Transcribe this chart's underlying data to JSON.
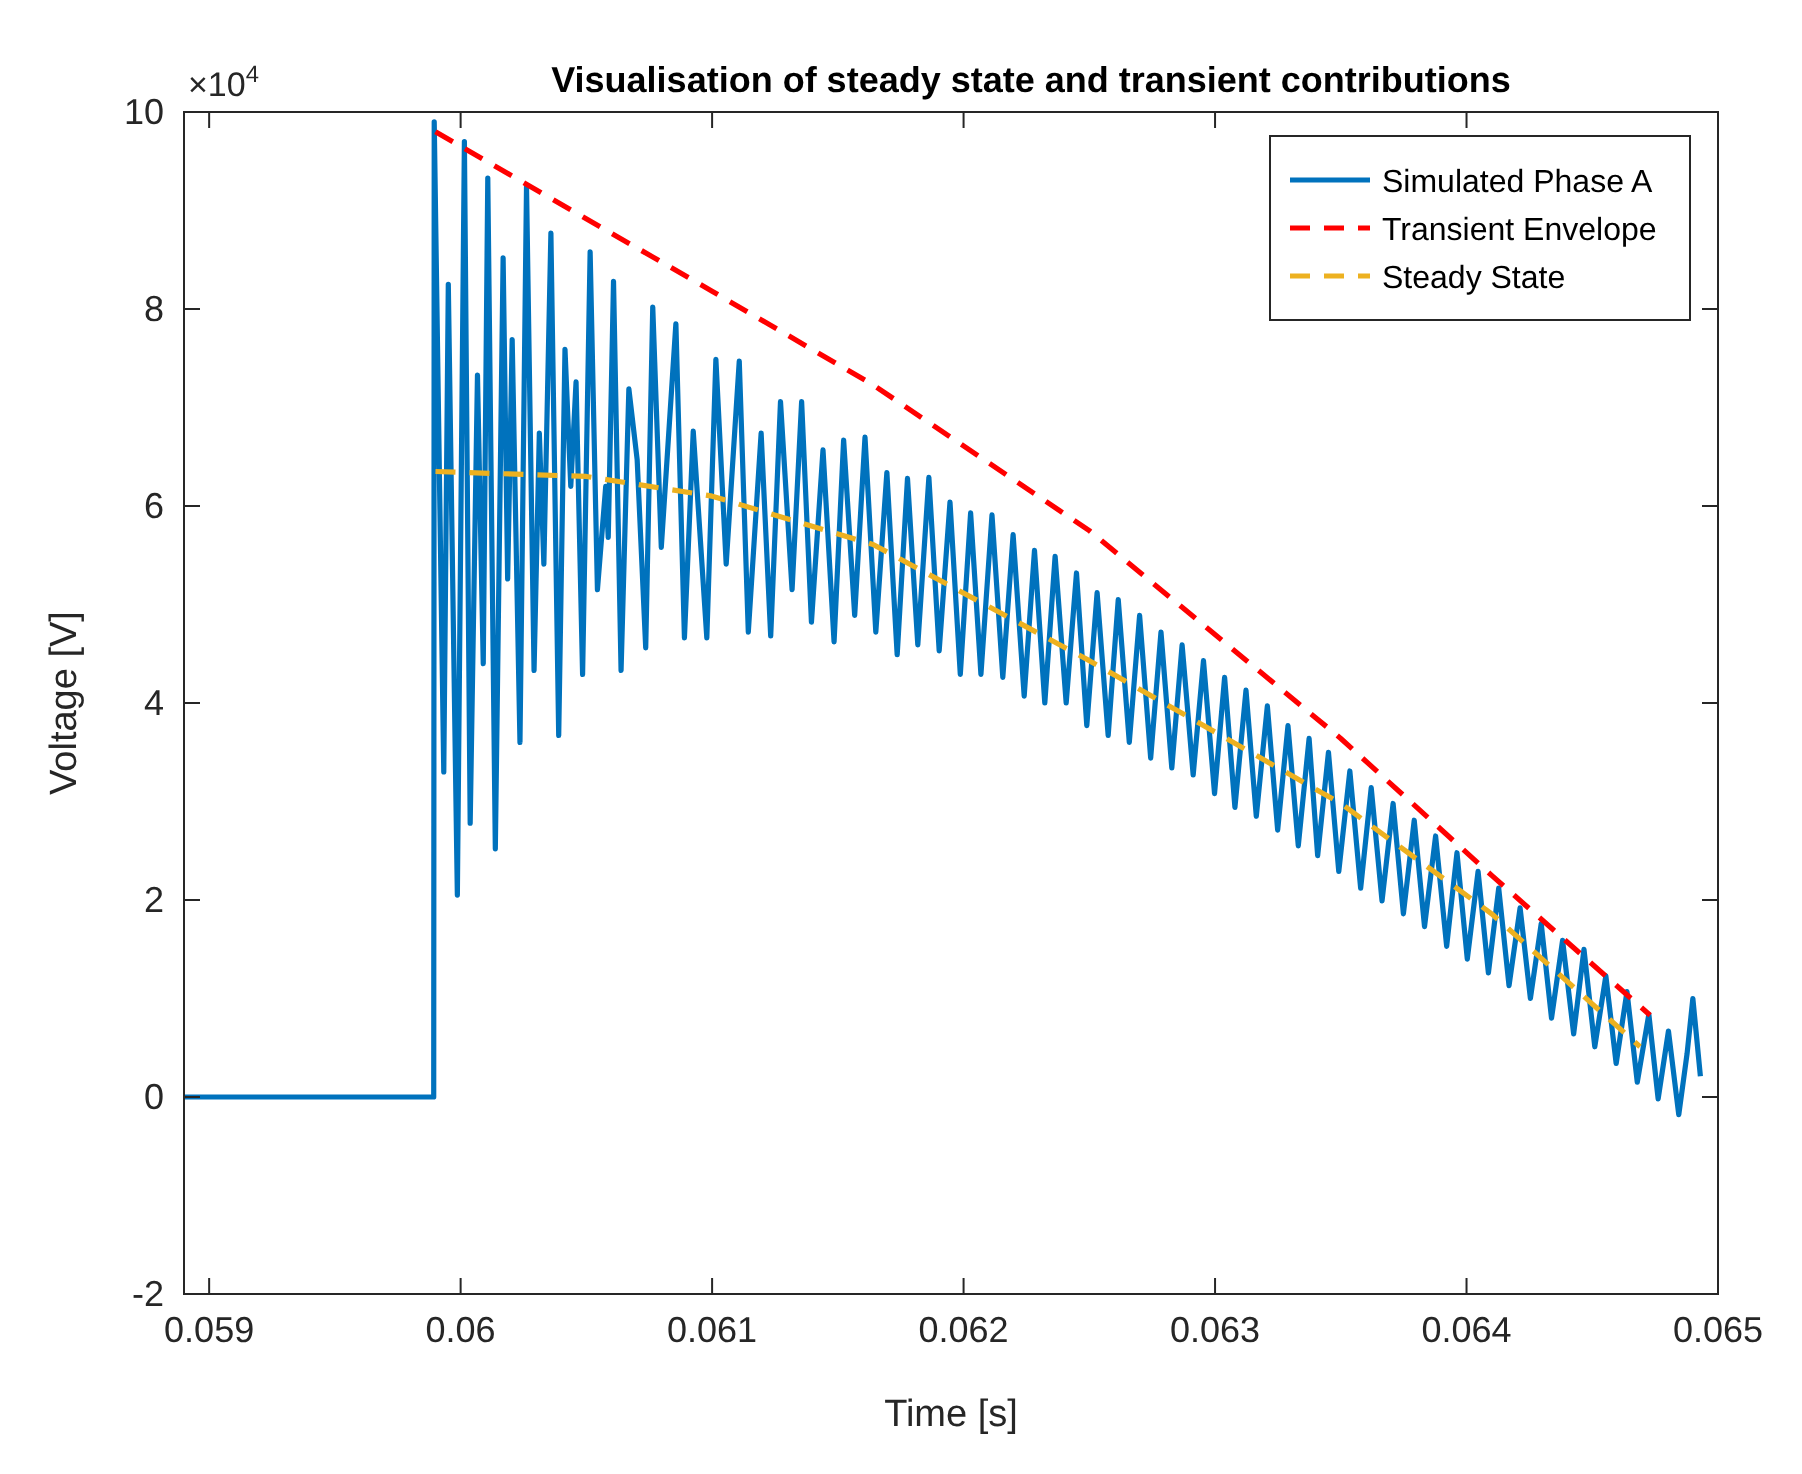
{
  "chart_data": {
    "type": "line",
    "title": "Visualisation of steady state and transient contributions",
    "xlabel": "Time [s]",
    "ylabel": "Voltage [V]",
    "annotations": [
      "×10$^{4}$"
    ],
    "xlim": [
      0.0589,
      0.065
    ],
    "xticks": [
      0.059,
      0.06,
      0.061,
      0.062,
      0.063,
      0.064,
      0.065
    ],
    "ylim": [
      -2,
      10
    ],
    "yticks": [
      -2,
      0,
      2,
      4,
      6,
      8,
      10
    ],
    "grid": false,
    "legend": "top right",
    "line_style": "solid",
    "marker": "none",
    "series": [
      {
        "name": "Simulated Phase A",
        "color": "#0072bd",
        "x": [
          0.0589,
          0.059893,
          0.059895,
          0.059933,
          0.059951,
          0.059987,
          0.060015,
          0.060038,
          0.060067,
          0.06009,
          0.060108,
          0.060138,
          0.060169,
          0.060187,
          0.060205,
          0.060236,
          0.060262,
          0.060292,
          0.060313,
          0.060331,
          0.060359,
          0.06039,
          0.060415,
          0.060438,
          0.060459,
          0.060485,
          0.060515,
          0.060544,
          0.060577,
          0.060587,
          0.060608,
          0.060638,
          0.060669,
          0.060702,
          0.060736,
          0.060764,
          0.060798,
          0.060856,
          0.06089,
          0.060925,
          0.060979,
          0.061015,
          0.061056,
          0.061108,
          0.061144,
          0.061195,
          0.061233,
          0.061272,
          0.061318,
          0.061356,
          0.061395,
          0.061441,
          0.061485,
          0.061523,
          0.061567,
          0.061608,
          0.061651,
          0.061695,
          0.061736,
          0.061777,
          0.061818,
          0.061862,
          0.061903,
          0.061946,
          0.061987,
          0.062028,
          0.062069,
          0.062113,
          0.062156,
          0.062197,
          0.062241,
          0.062282,
          0.062323,
          0.062364,
          0.062408,
          0.062449,
          0.06249,
          0.062531,
          0.062575,
          0.062615,
          0.062659,
          0.0627,
          0.062744,
          0.062785,
          0.062828,
          0.062869,
          0.062913,
          0.062954,
          0.062998,
          0.063038,
          0.063079,
          0.063123,
          0.063164,
          0.063208,
          0.063249,
          0.06329,
          0.063331,
          0.063374,
          0.063408,
          0.063451,
          0.063492,
          0.063536,
          0.063579,
          0.063621,
          0.063664,
          0.063708,
          0.063749,
          0.063792,
          0.063833,
          0.063877,
          0.063921,
          0.063962,
          0.064003,
          0.064046,
          0.064087,
          0.064128,
          0.064169,
          0.064213,
          0.064254,
          0.064297,
          0.064338,
          0.064382,
          0.064426,
          0.064467,
          0.06451,
          0.064554,
          0.064595,
          0.064638,
          0.064679,
          0.064725,
          0.064762,
          0.064803,
          0.064844,
          0.064877,
          0.0649,
          0.06493
        ],
        "values": [
          0,
          0,
          9.9,
          3.3,
          8.25,
          2.05,
          9.7,
          2.78,
          7.33,
          4.4,
          9.33,
          2.52,
          8.52,
          5.26,
          7.69,
          3.6,
          9.24,
          4.33,
          6.74,
          5.41,
          8.77,
          3.67,
          7.59,
          6.2,
          7.26,
          4.29,
          8.58,
          5.15,
          6.2,
          5.68,
          8.28,
          4.33,
          7.19,
          6.47,
          4.56,
          8.02,
          5.58,
          7.85,
          4.66,
          6.76,
          4.66,
          7.49,
          5.41,
          7.47,
          4.72,
          6.74,
          4.68,
          7.06,
          5.15,
          7.06,
          4.82,
          6.57,
          4.62,
          6.67,
          4.89,
          6.7,
          4.72,
          6.34,
          4.49,
          6.28,
          4.59,
          6.29,
          4.53,
          6.04,
          4.29,
          5.93,
          4.29,
          5.91,
          4.26,
          5.71,
          4.07,
          5.55,
          4.0,
          5.49,
          4.0,
          5.32,
          3.77,
          5.12,
          3.67,
          5.05,
          3.6,
          4.89,
          3.44,
          4.72,
          3.34,
          4.59,
          3.27,
          4.43,
          3.08,
          4.26,
          2.94,
          4.13,
          2.85,
          3.97,
          2.71,
          3.77,
          2.55,
          3.64,
          2.45,
          3.5,
          2.29,
          3.31,
          2.12,
          3.14,
          1.99,
          2.98,
          1.86,
          2.81,
          1.73,
          2.65,
          1.53,
          2.48,
          1.4,
          2.29,
          1.26,
          2.12,
          1.13,
          1.92,
          1.0,
          1.76,
          0.8,
          1.59,
          0.64,
          1.5,
          0.51,
          1.23,
          0.34,
          1.07,
          0.15,
          0.84,
          -0.02,
          0.67,
          -0.18,
          0.44,
          1.0,
          0.21
        ]
      },
      {
        "name": "Transient Envelope",
        "color": "#ff0000",
        "line_style": "dashed",
        "x": [
          0.0599,
          0.061,
          0.06164,
          0.0625,
          0.0635,
          0.0641,
          0.06473
        ],
        "values": [
          9.8,
          8.18,
          7.23,
          5.75,
          3.64,
          2.25,
          0.83
        ]
      },
      {
        "name": "Steady State",
        "color": "#edb120",
        "line_style": "dashed",
        "x": [
          0.0599,
          0.0605,
          0.061,
          0.06164,
          0.0625,
          0.0635,
          0.0641,
          0.06469
        ],
        "values": [
          6.35,
          6.3,
          6.1,
          5.61,
          4.43,
          2.98,
          1.86,
          0.51
        ]
      }
    ]
  }
}
